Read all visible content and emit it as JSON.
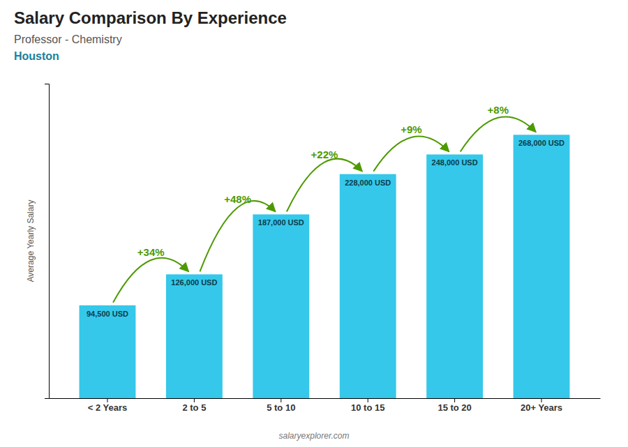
{
  "chart_data": {
    "type": "bar",
    "title": "Salary Comparison By Experience",
    "subtitle": "Professor - Chemistry",
    "city": "Houston",
    "categories": [
      "< 2 Years",
      "2 to 5",
      "5 to 10",
      "10 to 15",
      "15 to 20",
      "20+ Years"
    ],
    "values": [
      94500,
      126000,
      187000,
      228000,
      248000,
      268000
    ],
    "value_labels": [
      "94,500 USD",
      "126,000 USD",
      "187,000 USD",
      "228,000 USD",
      "248,000 USD",
      "268,000 USD"
    ],
    "data_labels": true,
    "color": "#35C8EA",
    "ylim": [
      0,
      320000
    ],
    "ylabel": "Average Yearly Salary",
    "tick_labels": "x",
    "annotations": [
      "+34%",
      "+48%",
      "+22%",
      "+9%",
      "+8%"
    ],
    "footer": "salaryexplorer.com"
  }
}
